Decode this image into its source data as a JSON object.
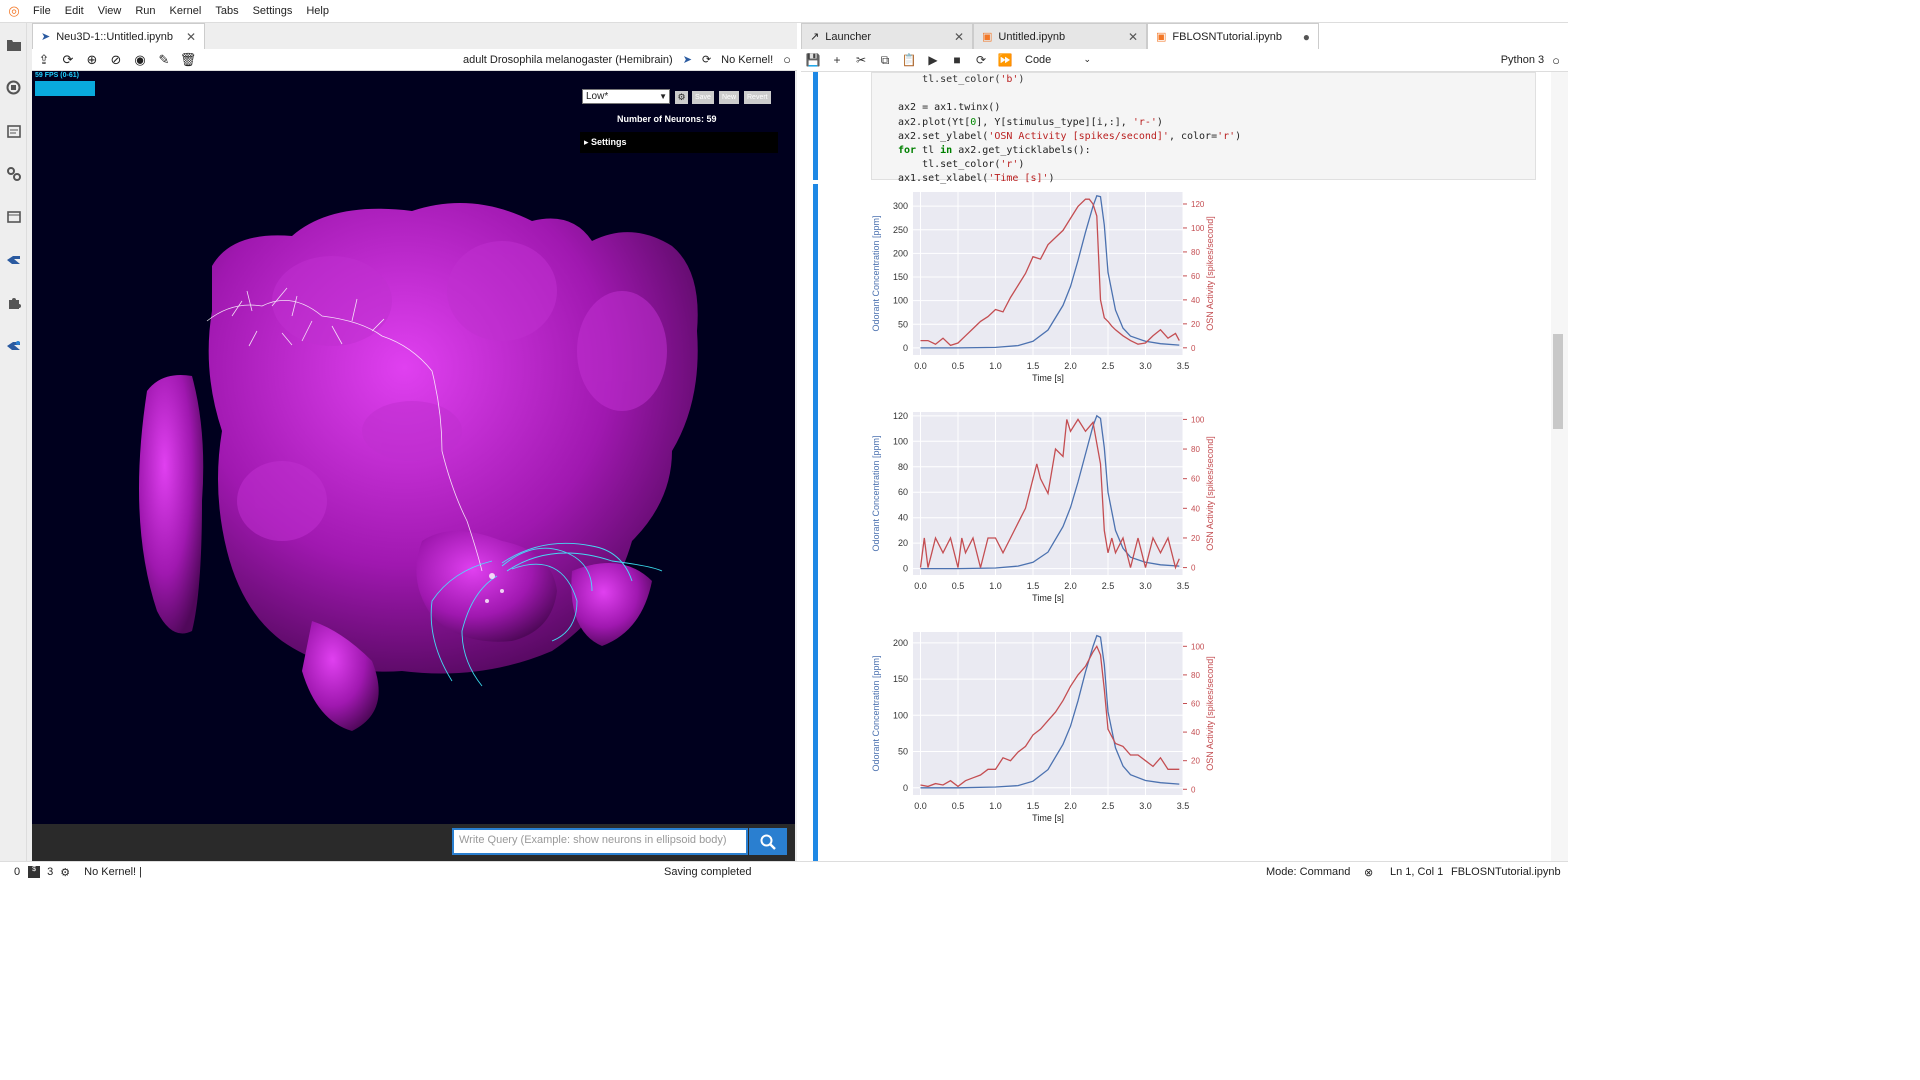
{
  "menu": [
    "File",
    "Edit",
    "View",
    "Run",
    "Kernel",
    "Tabs",
    "Settings",
    "Help"
  ],
  "left_panel": {
    "tab_title": "Neu3D-1::Untitled.ipynb",
    "dataset": "adult Drosophila melanogaster (Hemibrain)",
    "kernel": "No Kernel!",
    "viewer": {
      "fps": "59 FPS (0-61)",
      "quality": "Low*",
      "save": "Save",
      "new": "New",
      "revert": "Revert",
      "neurons_label": "Number of Neurons:",
      "neurons_count": "59",
      "settings": "Settings"
    },
    "query_placeholder": "Write Query (Example: show neurons in ellipsoid body)"
  },
  "right_panel": {
    "tabs": [
      {
        "label": "Launcher"
      },
      {
        "label": "Untitled.ipynb"
      },
      {
        "label": "FBLOSNTutorial.ipynb"
      }
    ],
    "cell_type": "Code",
    "kernel": "Python 3"
  },
  "status": {
    "left_num": "0",
    "terminals": "3",
    "kernel": "No Kernel! |",
    "center": "Saving completed",
    "mode": "Mode: Command",
    "position": "Ln 1, Col 1",
    "file": "FBLOSNTutorial.ipynb"
  },
  "colors": {
    "accent": "#1e88e5",
    "brain": "#b020c0",
    "neurons": "#30e0ff"
  },
  "chart_data": [
    {
      "type": "line",
      "xlabel": "Time [s]",
      "ylabel": "Odorant Concentration [ppm]",
      "y2label": "OSN Activity [spikes/second]",
      "xticks": [
        "0.0",
        "0.5",
        "1.0",
        "1.5",
        "2.0",
        "2.5",
        "3.0",
        "3.5"
      ],
      "yticks": [
        "0",
        "50",
        "100",
        "150",
        "200",
        "250",
        "300"
      ],
      "y2ticks": [
        "0",
        "20",
        "40",
        "60",
        "80",
        "100",
        "120"
      ],
      "xlim": [
        -0.1,
        3.5
      ],
      "ylim": [
        -15,
        330
      ],
      "y2lim": [
        -6,
        130
      ],
      "series": [
        {
          "axis": "left",
          "color": "#4c72b0",
          "x": [
            0,
            0.5,
            1.0,
            1.3,
            1.5,
            1.7,
            1.9,
            2.0,
            2.1,
            2.2,
            2.3,
            2.35,
            2.4,
            2.45,
            2.5,
            2.6,
            2.7,
            2.8,
            3.0,
            3.2,
            3.45
          ],
          "y": [
            0,
            0,
            1,
            5,
            14,
            38,
            90,
            130,
            185,
            245,
            300,
            322,
            320,
            260,
            160,
            80,
            42,
            25,
            14,
            9,
            6
          ]
        },
        {
          "axis": "right",
          "color": "#c44e52",
          "x": [
            0,
            0.1,
            0.2,
            0.3,
            0.4,
            0.5,
            0.6,
            0.7,
            0.8,
            0.9,
            1.0,
            1.1,
            1.2,
            1.3,
            1.4,
            1.5,
            1.6,
            1.7,
            1.8,
            1.9,
            2.0,
            2.1,
            2.2,
            2.25,
            2.3,
            2.35,
            2.4,
            2.45,
            2.5,
            2.55,
            2.6,
            2.7,
            2.8,
            2.9,
            3.0,
            3.1,
            3.2,
            3.3,
            3.4,
            3.45
          ],
          "y": [
            6,
            6,
            3,
            8,
            2,
            4,
            10,
            16,
            22,
            26,
            32,
            30,
            42,
            52,
            62,
            76,
            74,
            86,
            92,
            98,
            108,
            118,
            124,
            124,
            120,
            110,
            40,
            25,
            22,
            18,
            15,
            10,
            6,
            3,
            4,
            10,
            15,
            8,
            12,
            6
          ]
        }
      ]
    },
    {
      "type": "line",
      "xlabel": "Time [s]",
      "ylabel": "Odorant Concentration [ppm]",
      "y2label": "OSN Activity [spikes/second]",
      "xticks": [
        "0.0",
        "0.5",
        "1.0",
        "1.5",
        "2.0",
        "2.5",
        "3.0",
        "3.5"
      ],
      "yticks": [
        "0",
        "20",
        "40",
        "60",
        "80",
        "100",
        "120"
      ],
      "y2ticks": [
        "0",
        "20",
        "40",
        "60",
        "80",
        "100"
      ],
      "xlim": [
        -0.1,
        3.5
      ],
      "ylim": [
        -5,
        123
      ],
      "y2lim": [
        -5,
        105
      ],
      "series": [
        {
          "axis": "left",
          "color": "#4c72b0",
          "x": [
            0,
            0.5,
            1.0,
            1.3,
            1.5,
            1.7,
            1.9,
            2.0,
            2.1,
            2.2,
            2.3,
            2.35,
            2.4,
            2.45,
            2.5,
            2.6,
            2.7,
            2.8,
            3.0,
            3.2,
            3.45
          ],
          "y": [
            0,
            0,
            0.5,
            2,
            5,
            13,
            33,
            48,
            68,
            90,
            112,
            120,
            118,
            95,
            60,
            30,
            16,
            9,
            5,
            3,
            2
          ]
        },
        {
          "axis": "right",
          "color": "#c44e52",
          "x": [
            0,
            0.05,
            0.1,
            0.15,
            0.2,
            0.3,
            0.4,
            0.5,
            0.55,
            0.6,
            0.7,
            0.8,
            0.9,
            1.0,
            1.1,
            1.2,
            1.3,
            1.4,
            1.5,
            1.55,
            1.6,
            1.7,
            1.8,
            1.9,
            1.95,
            2.0,
            2.1,
            2.2,
            2.3,
            2.4,
            2.45,
            2.5,
            2.55,
            2.6,
            2.7,
            2.8,
            2.9,
            3.0,
            3.1,
            3.2,
            3.3,
            3.4,
            3.45
          ],
          "y": [
            0,
            20,
            0,
            10,
            20,
            10,
            20,
            0,
            20,
            10,
            20,
            0,
            20,
            20,
            10,
            20,
            30,
            40,
            60,
            70,
            60,
            50,
            80,
            75,
            100,
            92,
            100,
            92,
            98,
            70,
            25,
            10,
            20,
            10,
            20,
            0,
            20,
            0,
            20,
            10,
            20,
            0,
            6
          ]
        }
      ]
    },
    {
      "type": "line",
      "xlabel": "Time [s]",
      "ylabel": "Odorant Concentration [ppm]",
      "y2label": "OSN Activity [spikes/second]",
      "xticks": [
        "0.0",
        "0.5",
        "1.0",
        "1.5",
        "2.0",
        "2.5",
        "3.0",
        "3.5"
      ],
      "yticks": [
        "0",
        "50",
        "100",
        "150",
        "200"
      ],
      "y2ticks": [
        "0",
        "20",
        "40",
        "60",
        "80",
        "100"
      ],
      "xlim": [
        -0.1,
        3.5
      ],
      "ylim": [
        -10,
        215
      ],
      "y2lim": [
        -4,
        110
      ],
      "series": [
        {
          "axis": "left",
          "color": "#4c72b0",
          "x": [
            0,
            0.5,
            1.0,
            1.3,
            1.5,
            1.7,
            1.9,
            2.0,
            2.1,
            2.2,
            2.3,
            2.35,
            2.4,
            2.45,
            2.5,
            2.6,
            2.7,
            2.8,
            3.0,
            3.2,
            3.45
          ],
          "y": [
            0,
            0,
            1,
            3,
            9,
            25,
            60,
            85,
            120,
            160,
            195,
            210,
            208,
            170,
            105,
            55,
            30,
            18,
            10,
            7,
            5
          ]
        },
        {
          "axis": "right",
          "color": "#c44e52",
          "x": [
            0,
            0.1,
            0.2,
            0.3,
            0.4,
            0.5,
            0.6,
            0.7,
            0.8,
            0.9,
            1.0,
            1.1,
            1.2,
            1.3,
            1.4,
            1.5,
            1.6,
            1.7,
            1.8,
            1.9,
            2.0,
            2.1,
            2.2,
            2.3,
            2.35,
            2.4,
            2.45,
            2.5,
            2.6,
            2.7,
            2.8,
            2.9,
            3.0,
            3.1,
            3.2,
            3.3,
            3.45
          ],
          "y": [
            3,
            2,
            4,
            3,
            6,
            2,
            6,
            8,
            10,
            14,
            14,
            22,
            20,
            26,
            30,
            38,
            42,
            48,
            54,
            62,
            72,
            80,
            86,
            96,
            100,
            94,
            70,
            42,
            32,
            30,
            24,
            24,
            20,
            16,
            22,
            14,
            14
          ]
        }
      ]
    }
  ]
}
